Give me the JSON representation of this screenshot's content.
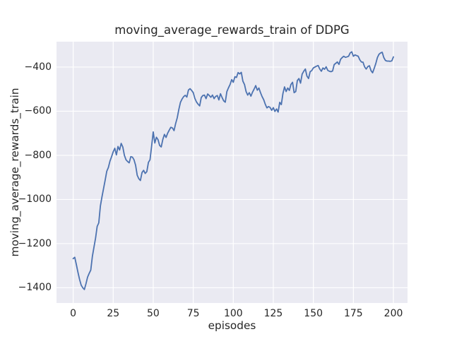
{
  "chart_data": {
    "type": "line",
    "title": "moving_average_rewards_train of DDPG",
    "xlabel": "episodes",
    "ylabel": "moving_average_rewards_train",
    "legend": false,
    "grid": true,
    "background_color": "#eaeaf2",
    "grid_color": "#ffffff",
    "line_color": "#4c72b0",
    "text_color": "#262626",
    "xlim": [
      -10.4,
      208.8
    ],
    "ylim": [
      -1469,
      -285
    ],
    "x_ticks": [
      0,
      25,
      50,
      75,
      100,
      125,
      150,
      175,
      200
    ],
    "y_ticks": [
      -400,
      -600,
      -800,
      -1000,
      -1200,
      -1400
    ],
    "series": [
      {
        "name": "moving_average_rewards_train",
        "x_start": 0,
        "x_step": 1,
        "values": [
          -1268,
          -1262,
          -1295,
          -1330,
          -1362,
          -1388,
          -1400,
          -1408,
          -1382,
          -1352,
          -1335,
          -1320,
          -1258,
          -1216,
          -1175,
          -1122,
          -1106,
          -1030,
          -988,
          -950,
          -912,
          -872,
          -855,
          -826,
          -806,
          -784,
          -768,
          -798,
          -760,
          -776,
          -746,
          -762,
          -800,
          -820,
          -828,
          -834,
          -806,
          -808,
          -820,
          -845,
          -890,
          -906,
          -914,
          -878,
          -868,
          -882,
          -874,
          -832,
          -820,
          -758,
          -694,
          -744,
          -718,
          -729,
          -755,
          -762,
          -728,
          -705,
          -719,
          -700,
          -686,
          -673,
          -676,
          -688,
          -656,
          -630,
          -592,
          -560,
          -545,
          -534,
          -528,
          -536,
          -504,
          -498,
          -506,
          -516,
          -542,
          -558,
          -568,
          -576,
          -538,
          -529,
          -527,
          -543,
          -522,
          -529,
          -537,
          -527,
          -543,
          -533,
          -529,
          -549,
          -521,
          -538,
          -553,
          -559,
          -511,
          -494,
          -479,
          -457,
          -469,
          -444,
          -447,
          -425,
          -431,
          -424,
          -464,
          -479,
          -511,
          -527,
          -516,
          -532,
          -514,
          -500,
          -484,
          -505,
          -495,
          -516,
          -534,
          -548,
          -569,
          -585,
          -579,
          -583,
          -596,
          -584,
          -601,
          -590,
          -604,
          -560,
          -570,
          -520,
          -490,
          -511,
          -495,
          -506,
          -479,
          -469,
          -516,
          -511,
          -461,
          -452,
          -473,
          -432,
          -419,
          -409,
          -441,
          -452,
          -421,
          -416,
          -404,
          -400,
          -396,
          -393,
          -409,
          -419,
          -404,
          -410,
          -399,
          -415,
          -419,
          -421,
          -418,
          -389,
          -383,
          -377,
          -388,
          -365,
          -357,
          -351,
          -356,
          -354,
          -351,
          -336,
          -331,
          -351,
          -345,
          -348,
          -351,
          -367,
          -377,
          -378,
          -399,
          -409,
          -398,
          -394,
          -416,
          -426,
          -406,
          -384,
          -357,
          -342,
          -336,
          -333,
          -357,
          -370,
          -373,
          -373,
          -374,
          -372,
          -354
        ]
      }
    ]
  }
}
